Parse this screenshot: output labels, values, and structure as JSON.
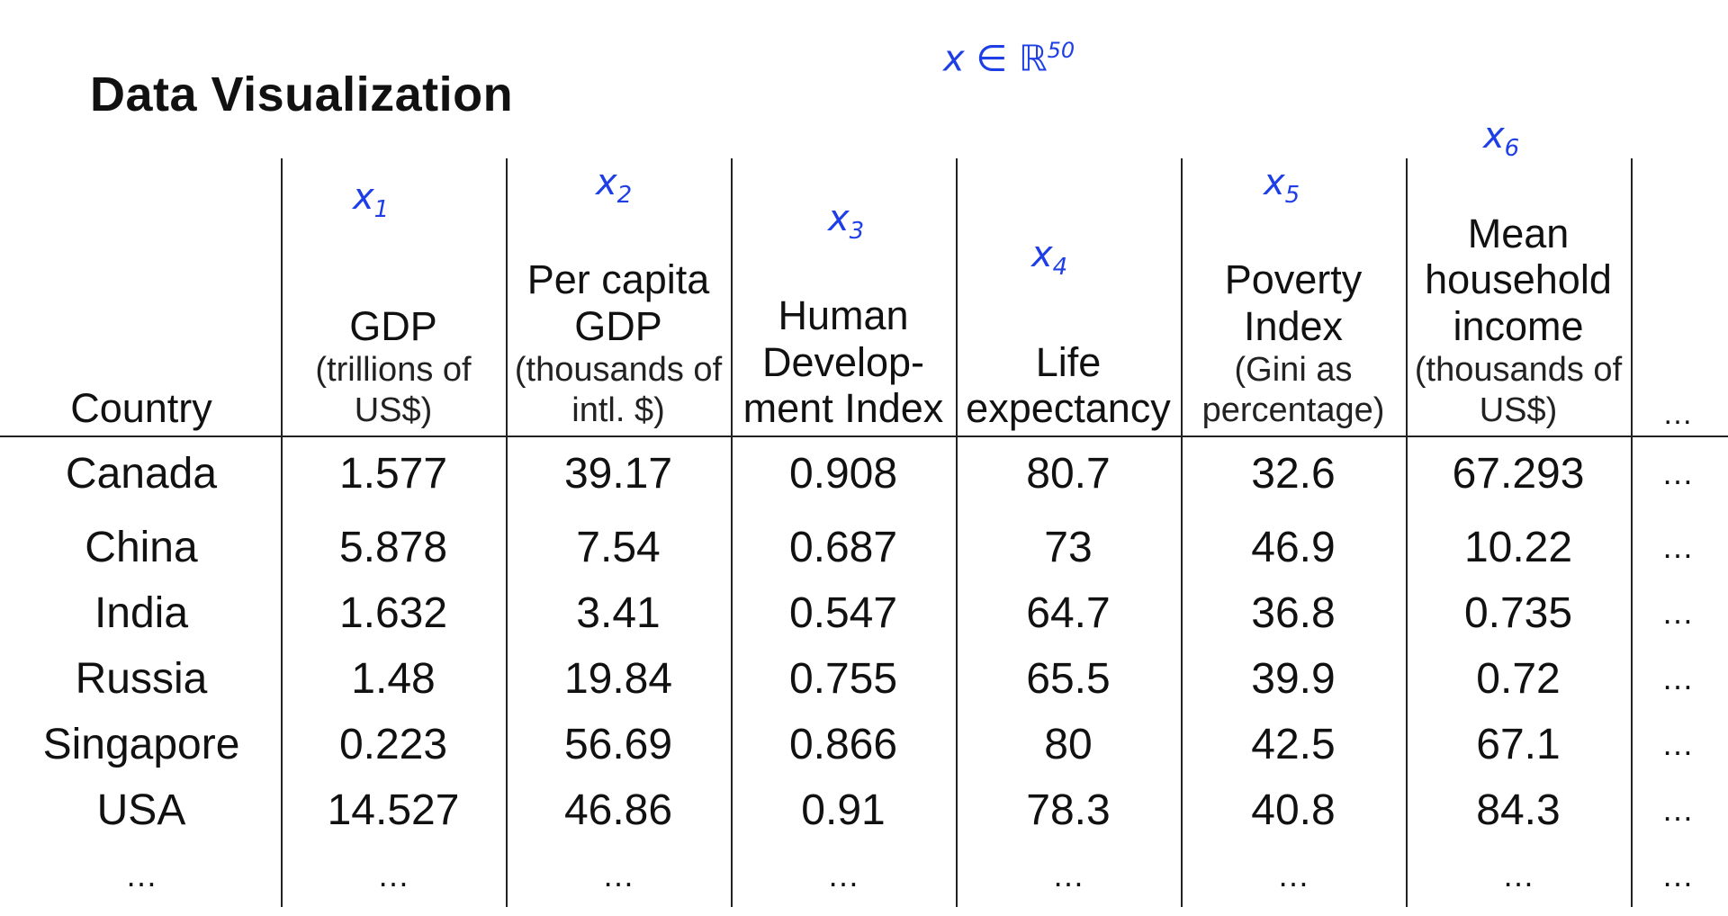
{
  "title": "Data Visualization",
  "annotations": {
    "space": {
      "base": "x ∈ ℝ",
      "exp": "50"
    },
    "features": [
      {
        "base": "x",
        "sub": "1"
      },
      {
        "base": "x",
        "sub": "2"
      },
      {
        "base": "x",
        "sub": "3"
      },
      {
        "base": "x",
        "sub": "4"
      },
      {
        "base": "x",
        "sub": "5"
      },
      {
        "base": "x",
        "sub": "6"
      }
    ]
  },
  "table": {
    "headers": [
      {
        "main": "Country",
        "unit": ""
      },
      {
        "main": "GDP",
        "unit": "(trillions of US$)"
      },
      {
        "main": "Per capita GDP",
        "unit": "(thousands of intl. $)"
      },
      {
        "main": "Human Develop-ment Index",
        "unit": ""
      },
      {
        "main": "Life expectancy",
        "unit": ""
      },
      {
        "main": "Poverty Index",
        "unit": "(Gini as percentage)"
      },
      {
        "main": "Mean household income",
        "unit": "(thousands of US$)"
      },
      {
        "main": "…",
        "unit": ""
      }
    ],
    "rows": [
      [
        "Canada",
        "1.577",
        "39.17",
        "0.908",
        "80.7",
        "32.6",
        "67.293",
        "…"
      ],
      [
        "China",
        "5.878",
        "7.54",
        "0.687",
        "73",
        "46.9",
        "10.22",
        "…"
      ],
      [
        "India",
        "1.632",
        "3.41",
        "0.547",
        "64.7",
        "36.8",
        "0.735",
        "…"
      ],
      [
        "Russia",
        "1.48",
        "19.84",
        "0.755",
        "65.5",
        "39.9",
        "0.72",
        "…"
      ],
      [
        "Singapore",
        "0.223",
        "56.69",
        "0.866",
        "80",
        "42.5",
        "67.1",
        "…"
      ],
      [
        "USA",
        "14.527",
        "46.86",
        "0.91",
        "78.3",
        "40.8",
        "84.3",
        "…"
      ],
      [
        "…",
        "…",
        "…",
        "…",
        "…",
        "…",
        "…",
        "…"
      ]
    ]
  }
}
